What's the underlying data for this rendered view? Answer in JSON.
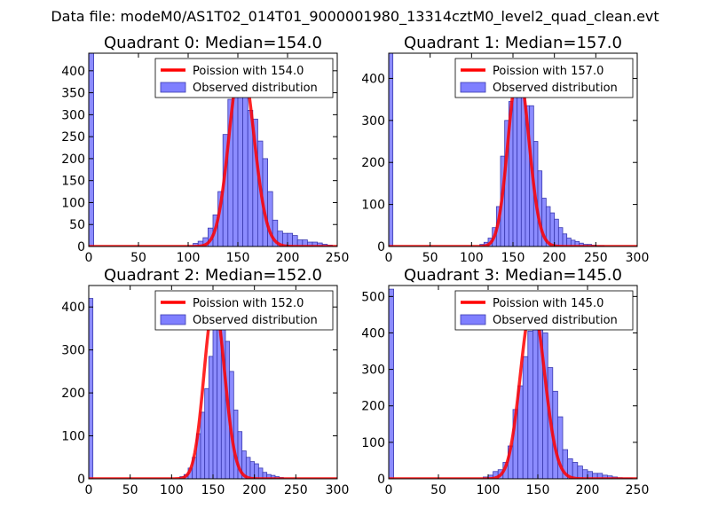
{
  "figure_title": "Data file: modeM0/AS1T02_014T01_9000001980_13314cztM0_level2_quad_clean.evt",
  "colors": {
    "fit_line": "#ff0000",
    "bar_fill": "#7f7fff",
    "bar_edge": "#3a3ab0"
  },
  "chart_data": [
    {
      "type": "bar",
      "title": "Quadrant 0: Median=154.0",
      "median": 154,
      "legend": [
        "Poission with 154.0",
        "Observed distribution"
      ],
      "legend_position": "top-right",
      "xlim": [
        0,
        250
      ],
      "ylim": [
        0,
        440
      ],
      "xticks": [
        0,
        50,
        100,
        150,
        200,
        250
      ],
      "yticks": [
        0,
        50,
        100,
        150,
        200,
        250,
        300,
        350,
        400
      ],
      "bin_width": 5,
      "bin_starts": [
        0,
        100,
        105,
        110,
        115,
        120,
        125,
        130,
        135,
        140,
        145,
        150,
        155,
        160,
        165,
        170,
        175,
        180,
        185,
        190,
        195,
        200,
        205,
        210,
        215,
        220,
        225,
        230,
        235,
        240
      ],
      "values": [
        440,
        2,
        7,
        12,
        20,
        42,
        72,
        125,
        255,
        335,
        395,
        420,
        395,
        310,
        290,
        240,
        200,
        125,
        60,
        35,
        30,
        30,
        25,
        15,
        15,
        10,
        10,
        8,
        5,
        3
      ]
    },
    {
      "type": "bar",
      "title": "Quadrant 1: Median=157.0",
      "median": 157,
      "legend": [
        "Poission with 157.0",
        "Observed distribution"
      ],
      "legend_position": "top-right",
      "xlim": [
        0,
        300
      ],
      "ylim": [
        0,
        460
      ],
      "xticks": [
        0,
        50,
        100,
        150,
        200,
        250,
        300
      ],
      "yticks": [
        0,
        100,
        200,
        300,
        400
      ],
      "bin_width": 5,
      "bin_starts": [
        0,
        110,
        115,
        120,
        125,
        130,
        135,
        140,
        145,
        150,
        155,
        160,
        165,
        170,
        175,
        180,
        185,
        190,
        195,
        200,
        205,
        210,
        215,
        220,
        225,
        230,
        235,
        240,
        245,
        250,
        255
      ],
      "values": [
        460,
        5,
        10,
        20,
        45,
        95,
        215,
        300,
        345,
        395,
        420,
        400,
        335,
        335,
        250,
        180,
        115,
        95,
        80,
        65,
        45,
        30,
        20,
        15,
        12,
        8,
        5,
        5,
        3,
        2,
        2
      ]
    },
    {
      "type": "bar",
      "title": "Quadrant 2: Median=152.0",
      "median": 152,
      "legend": [
        "Poission with 152.0",
        "Observed distribution"
      ],
      "legend_position": "top-right",
      "xlim": [
        0,
        300
      ],
      "ylim": [
        0,
        450
      ],
      "xticks": [
        0,
        50,
        100,
        150,
        200,
        250,
        300
      ],
      "yticks": [
        0,
        100,
        200,
        300,
        400
      ],
      "bin_width": 5,
      "bin_starts": [
        0,
        110,
        115,
        120,
        125,
        130,
        135,
        140,
        145,
        150,
        155,
        160,
        165,
        170,
        175,
        180,
        185,
        190,
        195,
        200,
        205,
        210,
        215,
        220,
        225,
        230
      ],
      "values": [
        420,
        5,
        10,
        25,
        50,
        105,
        155,
        210,
        285,
        365,
        410,
        385,
        320,
        250,
        160,
        110,
        65,
        50,
        40,
        35,
        25,
        15,
        10,
        8,
        5,
        3
      ]
    },
    {
      "type": "bar",
      "title": "Quadrant 3: Median=145.0",
      "median": 145,
      "legend": [
        "Poission with 145.0",
        "Observed distribution"
      ],
      "legend_position": "top-right",
      "xlim": [
        0,
        250
      ],
      "ylim": [
        0,
        530
      ],
      "xticks": [
        0,
        50,
        100,
        150,
        200,
        250
      ],
      "yticks": [
        0,
        100,
        200,
        300,
        400,
        500
      ],
      "bin_width": 5,
      "bin_starts": [
        0,
        95,
        100,
        105,
        110,
        115,
        120,
        125,
        130,
        135,
        140,
        145,
        150,
        155,
        160,
        165,
        170,
        175,
        180,
        185,
        190,
        195,
        200,
        205,
        210,
        215,
        220,
        225,
        230,
        235,
        240
      ],
      "values": [
        520,
        5,
        10,
        20,
        25,
        45,
        90,
        190,
        255,
        335,
        405,
        430,
        480,
        400,
        305,
        240,
        170,
        80,
        55,
        45,
        35,
        25,
        20,
        15,
        15,
        10,
        8,
        5,
        3,
        2,
        2
      ]
    }
  ]
}
